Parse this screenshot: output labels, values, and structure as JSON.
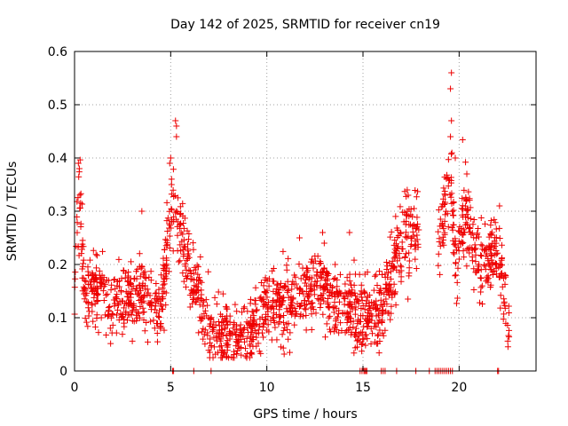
{
  "chart_data": {
    "type": "scatter",
    "title": "Day 142 of 2025, SRMTID for receiver cn19",
    "xlabel": "GPS time / hours",
    "ylabel": "SRMTID / TECUs",
    "xlim": [
      0,
      24
    ],
    "ylim": [
      0,
      0.6
    ],
    "x_ticks": [
      0,
      5,
      10,
      15,
      20
    ],
    "y_ticks": [
      0,
      0.1,
      0.2,
      0.3,
      0.4,
      0.5,
      0.6
    ],
    "x_tick_labels": [
      "0",
      "5",
      "10",
      "15",
      "20"
    ],
    "y_tick_labels": [
      "0",
      "0.1",
      "0.2",
      "0.3",
      "0.4",
      "0.5",
      "0.6"
    ],
    "grid": true,
    "marker": "plus",
    "color": "#ee0000",
    "series": [
      {
        "name": "SRMTID",
        "trend": [
          {
            "x": 0.0,
            "y": 0.12
          },
          {
            "x": 0.15,
            "y": 0.28
          },
          {
            "x": 0.3,
            "y": 0.33
          },
          {
            "x": 0.5,
            "y": 0.12
          },
          {
            "x": 1.0,
            "y": 0.16
          },
          {
            "x": 1.5,
            "y": 0.14
          },
          {
            "x": 2.0,
            "y": 0.13
          },
          {
            "x": 2.5,
            "y": 0.14
          },
          {
            "x": 3.0,
            "y": 0.13
          },
          {
            "x": 3.5,
            "y": 0.15
          },
          {
            "x": 4.0,
            "y": 0.13
          },
          {
            "x": 4.5,
            "y": 0.12
          },
          {
            "x": 4.9,
            "y": 0.26
          },
          {
            "x": 5.2,
            "y": 0.33
          },
          {
            "x": 5.5,
            "y": 0.27
          },
          {
            "x": 5.8,
            "y": 0.2
          },
          {
            "x": 6.2,
            "y": 0.16
          },
          {
            "x": 6.8,
            "y": 0.1
          },
          {
            "x": 7.2,
            "y": 0.06
          },
          {
            "x": 7.8,
            "y": 0.07
          },
          {
            "x": 8.3,
            "y": 0.05
          },
          {
            "x": 8.8,
            "y": 0.06
          },
          {
            "x": 9.3,
            "y": 0.08
          },
          {
            "x": 9.8,
            "y": 0.11
          },
          {
            "x": 10.3,
            "y": 0.13
          },
          {
            "x": 10.8,
            "y": 0.12
          },
          {
            "x": 11.3,
            "y": 0.13
          },
          {
            "x": 11.8,
            "y": 0.14
          },
          {
            "x": 12.3,
            "y": 0.14
          },
          {
            "x": 12.8,
            "y": 0.17
          },
          {
            "x": 13.3,
            "y": 0.13
          },
          {
            "x": 13.8,
            "y": 0.12
          },
          {
            "x": 14.3,
            "y": 0.13
          },
          {
            "x": 14.8,
            "y": 0.1
          },
          {
            "x": 15.3,
            "y": 0.11
          },
          {
            "x": 15.8,
            "y": 0.1
          },
          {
            "x": 16.2,
            "y": 0.14
          },
          {
            "x": 16.6,
            "y": 0.2
          },
          {
            "x": 17.0,
            "y": 0.23
          },
          {
            "x": 17.4,
            "y": 0.25
          },
          {
            "x": 17.8,
            "y": 0.26
          },
          {
            "x": 19.0,
            "y": 0.25
          },
          {
            "x": 19.4,
            "y": 0.33
          },
          {
            "x": 19.6,
            "y": 0.36
          },
          {
            "x": 19.8,
            "y": 0.2
          },
          {
            "x": 20.2,
            "y": 0.27
          },
          {
            "x": 20.5,
            "y": 0.3
          },
          {
            "x": 20.8,
            "y": 0.22
          },
          {
            "x": 21.2,
            "y": 0.2
          },
          {
            "x": 21.6,
            "y": 0.22
          },
          {
            "x": 22.0,
            "y": 0.2
          },
          {
            "x": 22.4,
            "y": 0.14
          },
          {
            "x": 22.6,
            "y": 0.1
          }
        ],
        "spread": 0.045,
        "point_count": 1800,
        "peaks": [
          {
            "x": 0.2,
            "y": 0.39
          },
          {
            "x": 0.25,
            "y": 0.38
          },
          {
            "x": 3.5,
            "y": 0.3
          },
          {
            "x": 5.25,
            "y": 0.47
          },
          {
            "x": 5.3,
            "y": 0.46
          },
          {
            "x": 5.3,
            "y": 0.44
          },
          {
            "x": 5.0,
            "y": 0.4
          },
          {
            "x": 4.95,
            "y": 0.39
          },
          {
            "x": 17.3,
            "y": 0.34
          },
          {
            "x": 17.35,
            "y": 0.33
          },
          {
            "x": 19.6,
            "y": 0.56
          },
          {
            "x": 19.55,
            "y": 0.53
          },
          {
            "x": 19.6,
            "y": 0.47
          },
          {
            "x": 19.55,
            "y": 0.44
          },
          {
            "x": 19.8,
            "y": 0.4
          },
          {
            "x": 20.4,
            "y": 0.37
          },
          {
            "x": 22.1,
            "y": 0.31
          },
          {
            "x": 14.3,
            "y": 0.26
          },
          {
            "x": 11.7,
            "y": 0.25
          },
          {
            "x": 12.9,
            "y": 0.26
          }
        ],
        "zero_x": [
          5.1,
          5.15,
          6.2,
          7.1,
          14.85,
          14.95,
          15.05,
          15.1,
          15.15,
          15.2,
          15.95,
          16.05,
          16.15,
          16.75,
          17.75,
          18.45,
          18.75,
          18.85,
          18.95,
          19.05,
          19.15,
          19.25,
          19.35,
          19.45,
          19.55,
          19.65,
          22.0,
          22.05
        ]
      }
    ]
  }
}
